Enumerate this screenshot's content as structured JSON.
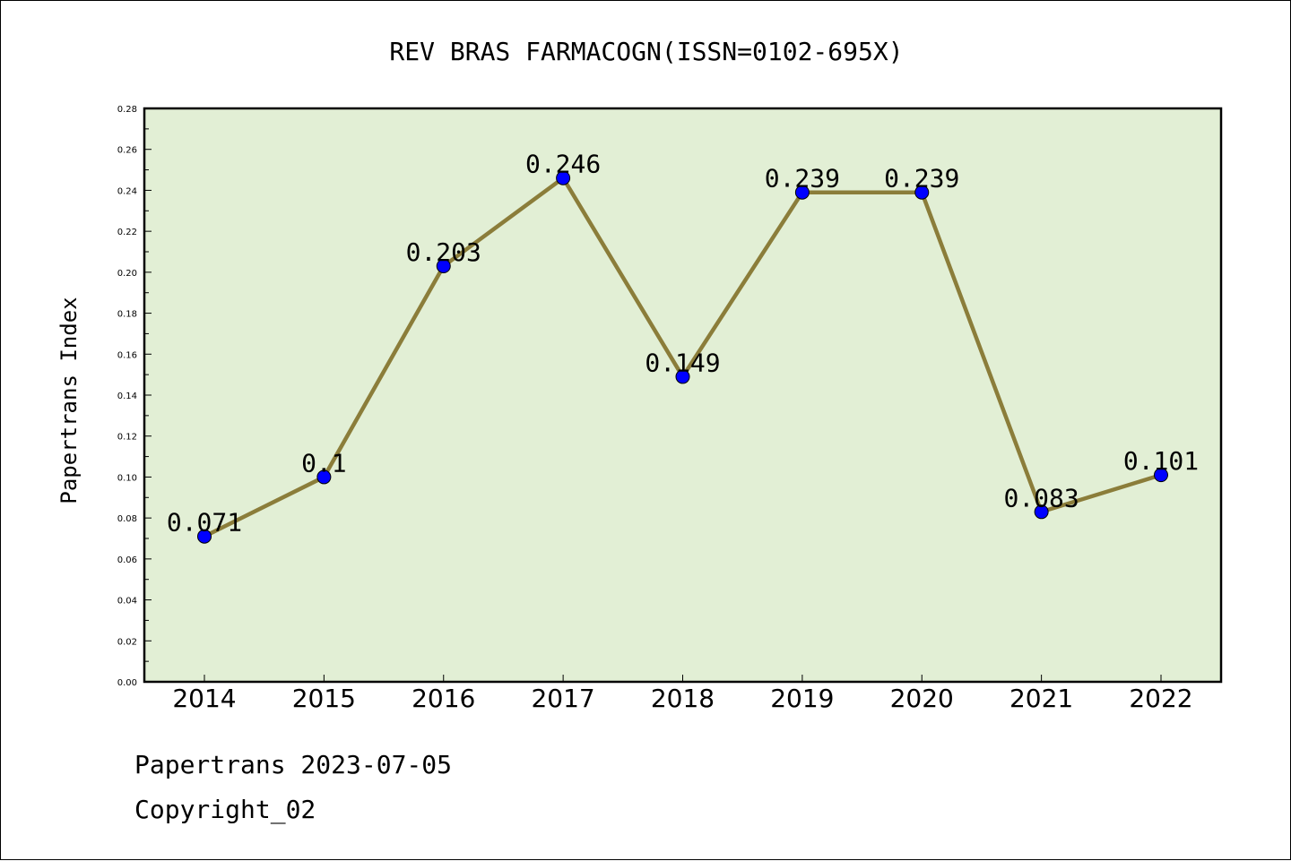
{
  "chart_data": {
    "type": "line",
    "title": "REV BRAS FARMACOGN(ISSN=0102-695X)",
    "ylabel": "Papertrans Index",
    "xlabel": "",
    "categories": [
      "2014",
      "2015",
      "2016",
      "2017",
      "2018",
      "2019",
      "2020",
      "2021",
      "2022"
    ],
    "values": [
      0.071,
      0.1,
      0.203,
      0.246,
      0.149,
      0.239,
      0.239,
      0.083,
      0.101
    ],
    "data_labels": [
      "0.071",
      "0.1",
      "0.203",
      "0.246",
      "0.149",
      "0.239",
      "0.239",
      "0.083",
      "0.101"
    ],
    "ylim": [
      0,
      0.28
    ],
    "yticks": [
      "0.00",
      "0.02",
      "0.04",
      "0.06",
      "0.08",
      "0.10",
      "0.12",
      "0.14",
      "0.16",
      "0.18",
      "0.20",
      "0.22",
      "0.24",
      "0.26",
      "0.28"
    ],
    "grid": false,
    "colors": {
      "plot_background": "#e2efd5",
      "line": "#8b7d3a",
      "marker": "#0000ff"
    }
  },
  "footer": {
    "date_line": "Papertrans 2023-07-05",
    "copyright": "Copyright_02"
  }
}
